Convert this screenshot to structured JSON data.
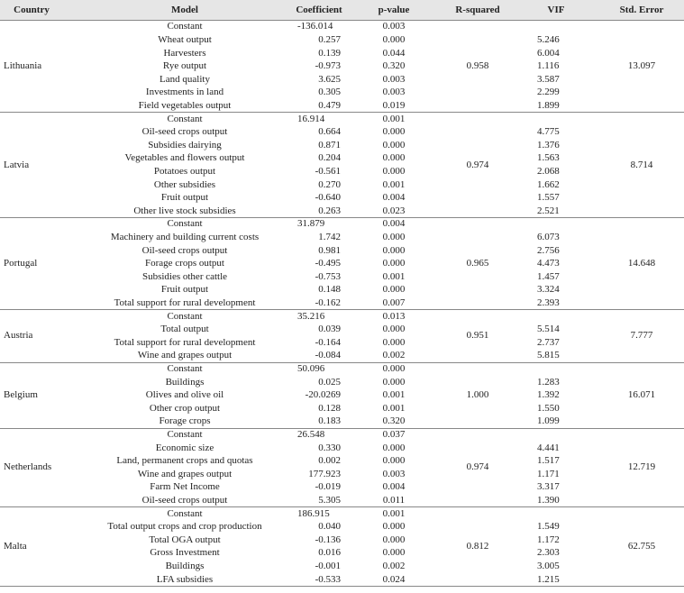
{
  "table": {
    "header": [
      "Country",
      "Model",
      "Coefficient",
      "p-value",
      "R-squared",
      "VIF",
      "Std. Error"
    ],
    "groups": [
      {
        "country": "Lithuania",
        "r_squared": "0.958",
        "std_error": "13.097",
        "rows": [
          {
            "model": "Constant",
            "coefficient": "-136.014",
            "p_value": "0.003"
          },
          {
            "model": "Wheat output",
            "coefficient": "0.257",
            "p_value": "0.000",
            "vif": "5.246"
          },
          {
            "model": "Harvesters",
            "coefficient": "0.139",
            "p_value": "0.044",
            "vif": "6.004"
          },
          {
            "model": "Rye output",
            "coefficient": "-0.973",
            "p_value": "0.320",
            "vif": "1.116"
          },
          {
            "model": "Land quality",
            "coefficient": "3.625",
            "p_value": "0.003",
            "vif": "3.587"
          },
          {
            "model": "Investments in land",
            "coefficient": "0.305",
            "p_value": "0.003",
            "vif": "2.299"
          },
          {
            "model": "Field vegetables output",
            "coefficient": "0.479",
            "p_value": "0.019",
            "vif": "1.899"
          }
        ]
      },
      {
        "country": "Latvia",
        "r_squared": "0.974",
        "std_error": "8.714",
        "rows": [
          {
            "model": "Constant",
            "coefficient": "16.914",
            "p_value": "0.001"
          },
          {
            "model": "Oil-seed crops output",
            "coefficient": "0.664",
            "p_value": "0.000",
            "vif": "4.775"
          },
          {
            "model": "Subsidies dairying",
            "coefficient": "0.871",
            "p_value": "0.000",
            "vif": "1.376"
          },
          {
            "model": "Vegetables and flowers output",
            "coefficient": "0.204",
            "p_value": "0.000",
            "vif": "1.563"
          },
          {
            "model": "Potatoes output",
            "coefficient": "-0.561",
            "p_value": "0.000",
            "vif": "2.068"
          },
          {
            "model": "Other subsidies",
            "coefficient": "0.270",
            "p_value": "0.001",
            "vif": "1.662"
          },
          {
            "model": "Fruit output",
            "coefficient": "-0.640",
            "p_value": "0.004",
            "vif": "1.557"
          },
          {
            "model": "Other live stock subsidies",
            "coefficient": "0.263",
            "p_value": "0.023",
            "vif": "2.521"
          }
        ]
      },
      {
        "country": "Portugal",
        "r_squared": "0.965",
        "std_error": "14.648",
        "rows": [
          {
            "model": "Constant",
            "coefficient": "31.879",
            "p_value": "0.004"
          },
          {
            "model": "Machinery and building current costs",
            "coefficient": "1.742",
            "p_value": "0.000",
            "vif": "6.073"
          },
          {
            "model": "Oil-seed crops output",
            "coefficient": "0.981",
            "p_value": "0.000",
            "vif": "2.756"
          },
          {
            "model": "Forage crops output",
            "coefficient": "-0.495",
            "p_value": "0.000",
            "vif": "4.473"
          },
          {
            "model": "Subsidies other cattle",
            "coefficient": "-0.753",
            "p_value": "0.001",
            "vif": "1.457"
          },
          {
            "model": "Fruit output",
            "coefficient": "0.148",
            "p_value": "0.000",
            "vif": "3.324"
          },
          {
            "model": "Total support for rural development",
            "coefficient": "-0.162",
            "p_value": "0.007",
            "vif": "2.393"
          }
        ]
      },
      {
        "country": "Austria",
        "r_squared": "0.951",
        "std_error": "7.777",
        "rows": [
          {
            "model": "Constant",
            "coefficient": "35.216",
            "p_value": "0.013"
          },
          {
            "model": "Total output",
            "coefficient": "0.039",
            "p_value": "0.000",
            "vif": "5.514"
          },
          {
            "model": "Total support for rural development",
            "coefficient": "-0.164",
            "p_value": "0.000",
            "vif": "2.737"
          },
          {
            "model": "Wine and grapes output",
            "coefficient": "-0.084",
            "p_value": "0.002",
            "vif": "5.815"
          }
        ]
      },
      {
        "country": "Belgium",
        "r_squared": "1.000",
        "std_error": "16.071",
        "rows": [
          {
            "model": "Constant",
            "coefficient": "50.096",
            "p_value": "0.000"
          },
          {
            "model": "Buildings",
            "coefficient": "0.025",
            "p_value": "0.000",
            "vif": "1.283"
          },
          {
            "model": "Olives and olive oil",
            "coefficient": "-20.0269",
            "p_value": "0.001",
            "vif": "1.392"
          },
          {
            "model": "Other crop output",
            "coefficient": "0.128",
            "p_value": "0.001",
            "vif": "1.550"
          },
          {
            "model": "Forage crops",
            "coefficient": "0.183",
            "p_value": "0.320",
            "vif": "1.099"
          }
        ]
      },
      {
        "country": "Netherlands",
        "r_squared": "0.974",
        "std_error": "12.719",
        "rows": [
          {
            "model": "Constant",
            "coefficient": "26.548",
            "p_value": "0.037"
          },
          {
            "model": "Economic size",
            "coefficient": "0.330",
            "p_value": "0.000",
            "vif": "4.441"
          },
          {
            "model": "Land, permanent crops and quotas",
            "coefficient": "0.002",
            "p_value": "0.000",
            "vif": "1.517"
          },
          {
            "model": "Wine and grapes output",
            "coefficient": "177.923",
            "p_value": "0.003",
            "vif": "1.171"
          },
          {
            "model": "Farm Net Income",
            "coefficient": "-0.019",
            "p_value": "0.004",
            "vif": "3.317"
          },
          {
            "model": "Oil-seed crops output",
            "coefficient": "5.305",
            "p_value": "0.011",
            "vif": "1.390"
          }
        ]
      },
      {
        "country": "Malta",
        "r_squared": "0.812",
        "std_error": "62.755",
        "rows": [
          {
            "model": "Constant",
            "coefficient": "186.915",
            "p_value": "0.001"
          },
          {
            "model": "Total output crops and crop production",
            "coefficient": "0.040",
            "p_value": "0.000",
            "vif": "1.549"
          },
          {
            "model": "Total OGA output",
            "coefficient": "-0.136",
            "p_value": "0.000",
            "vif": "1.172"
          },
          {
            "model": "Gross Investment",
            "coefficient": "0.016",
            "p_value": "0.000",
            "vif": "2.303"
          },
          {
            "model": "Buildings",
            "coefficient": "-0.001",
            "p_value": "0.002",
            "vif": "3.005"
          },
          {
            "model": "LFA subsidies",
            "coefficient": "-0.533",
            "p_value": "0.024",
            "vif": "1.215"
          }
        ]
      }
    ]
  }
}
